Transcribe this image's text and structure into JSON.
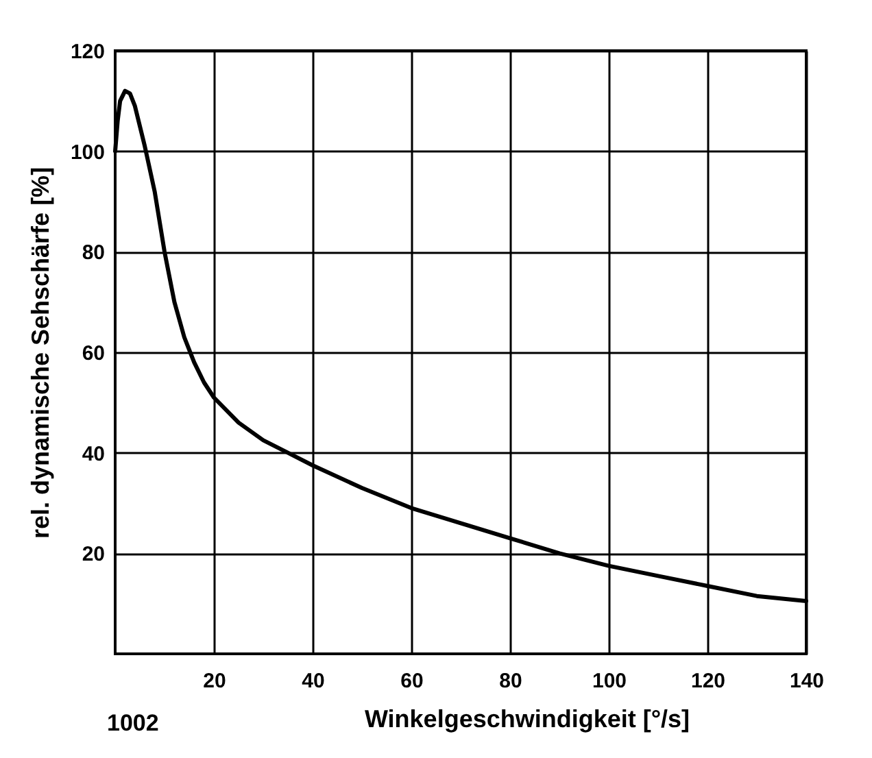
{
  "chart_data": {
    "type": "line",
    "xlabel": "Winkelgeschwindigkeit [°/s]",
    "ylabel": "rel. dynamische Sehschärfe [%]",
    "x": [
      0,
      0.5,
      1,
      2,
      3,
      4,
      6,
      8,
      10,
      12,
      14,
      16,
      18,
      20,
      25,
      30,
      35,
      40,
      50,
      60,
      70,
      80,
      90,
      100,
      110,
      120,
      130,
      140
    ],
    "series": [
      {
        "color": "#000000",
        "values": [
          100,
          106,
          110,
          112,
          111.5,
          109,
          101,
          92,
          80,
          70,
          63,
          58,
          54,
          51,
          46,
          42.5,
          40,
          37.5,
          33,
          29,
          26,
          23,
          20,
          17.5,
          15.5,
          13.5,
          11.5,
          10.5
        ]
      }
    ],
    "xlim": [
      0,
      140
    ],
    "ylim": [
      0,
      120
    ],
    "xticks": [
      20,
      40,
      60,
      80,
      100,
      120,
      140
    ],
    "yticks": [
      20,
      40,
      60,
      80,
      100,
      120
    ],
    "grid": true,
    "legend": false,
    "marker": "none",
    "line_style": "solid",
    "annotations": [
      "1002"
    ]
  }
}
